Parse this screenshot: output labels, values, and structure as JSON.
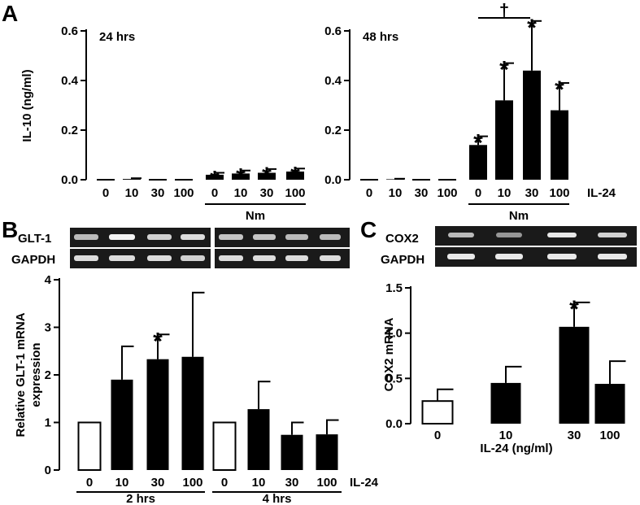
{
  "panel_labels": {
    "a": "A",
    "b": "B",
    "c": "C"
  },
  "gel_b": {
    "row1": "GLT-1",
    "row2": "GAPDH"
  },
  "gel_c": {
    "row1": "COX2",
    "row2": "GAPDH"
  },
  "dagger": "†",
  "chart_data": [
    {
      "id": "a24",
      "type": "bar",
      "annotation": "24 hrs",
      "ylabel": "IL-10 (ng/ml)",
      "ylim": [
        0,
        0.6
      ],
      "yticks": [
        "0.0",
        "0.2",
        "0.4",
        "0.6"
      ],
      "categories": [
        "0",
        "10",
        "30",
        "100",
        "0",
        "10",
        "30",
        "100"
      ],
      "values": [
        0,
        0.003,
        0,
        0,
        0.02,
        0.025,
        0.028,
        0.033
      ],
      "errors": [
        0,
        0.003,
        0,
        0,
        0.008,
        0.012,
        0.015,
        0.012
      ],
      "star": [
        false,
        false,
        false,
        false,
        true,
        true,
        true,
        true
      ],
      "group_label": "Nm",
      "group_indices": [
        4,
        7
      ]
    },
    {
      "id": "a48",
      "type": "bar",
      "annotation": "48 hrs",
      "ylim": [
        0,
        0.6
      ],
      "yticks": [
        "0.0",
        "0.2",
        "0.4",
        "0.6"
      ],
      "categories": [
        "0",
        "10",
        "30",
        "100",
        "0",
        "10",
        "30",
        "100"
      ],
      "values": [
        0,
        0.002,
        0,
        0,
        0.14,
        0.32,
        0.44,
        0.28
      ],
      "errors": [
        0,
        0.002,
        0,
        0,
        0.035,
        0.15,
        0.2,
        0.11
      ],
      "star": [
        false,
        false,
        false,
        false,
        true,
        true,
        true,
        true
      ],
      "group_label": "Nm",
      "group_indices": [
        4,
        7
      ],
      "trailing_label": "IL-24"
    },
    {
      "id": "b",
      "type": "bar",
      "ylabel_lines": [
        "Relative GLT-1 mRNA",
        "expression"
      ],
      "ylim": [
        0,
        4
      ],
      "yticks": [
        "0",
        "1",
        "2",
        "3",
        "4"
      ],
      "categories": [
        "0",
        "10",
        "30",
        "100",
        "0",
        "10",
        "30",
        "100"
      ],
      "values": [
        1,
        1.9,
        2.33,
        2.38,
        1,
        1.28,
        0.74,
        0.75
      ],
      "errors": [
        0,
        0.7,
        0.52,
        1.35,
        0,
        0.58,
        0.26,
        0.3
      ],
      "open": [
        true,
        false,
        false,
        false,
        true,
        false,
        false,
        false
      ],
      "star": [
        false,
        false,
        true,
        false,
        false,
        false,
        false,
        false
      ],
      "groups": [
        {
          "label": "2 hrs",
          "indices": [
            0,
            3
          ]
        },
        {
          "label": "4 hrs",
          "indices": [
            4,
            7
          ]
        }
      ],
      "trailing_label": "IL-24"
    },
    {
      "id": "c",
      "type": "bar",
      "ylabel": "COX2 mRNA",
      "xlabel": "IL-24 (ng/ml)",
      "ylim": [
        0,
        1.5
      ],
      "yticks": [
        "0.0",
        "0.5",
        "1.0",
        "1.5"
      ],
      "categories": [
        "0",
        "10",
        "30",
        "100"
      ],
      "values": [
        0.25,
        0.45,
        1.07,
        0.44
      ],
      "errors": [
        0.13,
        0.18,
        0.27,
        0.25
      ],
      "open": [
        true,
        false,
        false,
        false
      ],
      "star": [
        false,
        false,
        true,
        false
      ]
    }
  ]
}
